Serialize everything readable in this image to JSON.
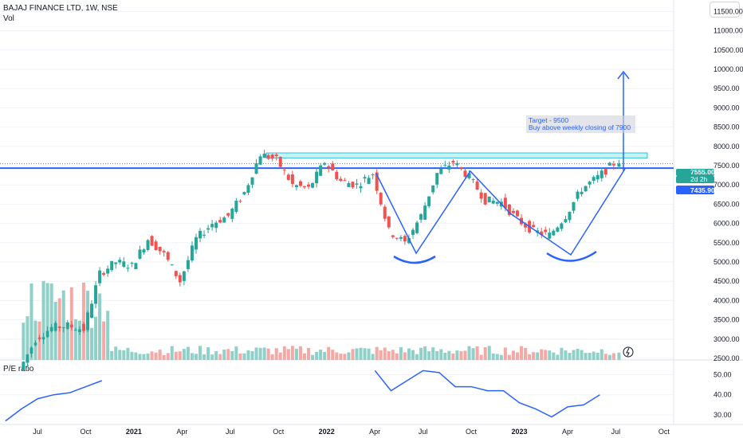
{
  "symbol_line": "BAJAJ FINANCE LTD, 1W, NSE",
  "volume_label": "Vol",
  "pe_label": "P/E ratio",
  "colors": {
    "up": "#26a69a",
    "down": "#ef5350",
    "up_vol": "#8fd0c8",
    "down_vol": "#f6a8a5",
    "pattern": "#2962ff",
    "pe_line": "#2962ff",
    "resistance_zone": "#b2ebf2"
  },
  "chart_data": [
    {
      "type": "candlestick",
      "title": "BAJAJ FINANCE LTD, 1W, NSE",
      "x_ticks": [
        "Jul",
        "Oct",
        "2021",
        "Apr",
        "Jul",
        "Oct",
        "2022",
        "Apr",
        "Jul",
        "Oct",
        "2023",
        "Apr",
        "Jul",
        "Oct"
      ],
      "y_ticks": [
        "2500.00",
        "3000.00",
        "3500.00",
        "4000.00",
        "4500.00",
        "5000.00",
        "5500.00",
        "6000.00",
        "6500.00",
        "7000.00",
        "7500.00",
        "8000.00",
        "8500.00",
        "9000.00",
        "9500.00",
        "10000.00",
        "10500.00",
        "11000.00",
        "11500.00"
      ],
      "ylim": [
        2500,
        11500
      ],
      "last_price_label": "7555.00",
      "countdown_label": "2d 2h",
      "line_price_label": "7435.90",
      "horizontal_line_value": 7435.9,
      "resistance_zone": [
        7700,
        7830
      ],
      "annotation": [
        "Target - 9500",
        "Buy above weekly closing of 7900"
      ],
      "target": 9500,
      "price_anchors": [
        {
          "date": "2020-06",
          "close": 2200
        },
        {
          "date": "2020-07",
          "close": 3000
        },
        {
          "date": "2020-08",
          "close": 3300
        },
        {
          "date": "2020-09",
          "close": 3350
        },
        {
          "date": "2020-10",
          "close": 3250
        },
        {
          "date": "2020-11",
          "close": 4700
        },
        {
          "date": "2020-12",
          "close": 5000
        },
        {
          "date": "2021-01",
          "close": 4900
        },
        {
          "date": "2021-02",
          "close": 5600
        },
        {
          "date": "2021-03",
          "close": 5200
        },
        {
          "date": "2021-04",
          "close": 4500
        },
        {
          "date": "2021-05",
          "close": 5600
        },
        {
          "date": "2021-06",
          "close": 6000
        },
        {
          "date": "2021-07",
          "close": 6200
        },
        {
          "date": "2021-08",
          "close": 6800
        },
        {
          "date": "2021-09",
          "close": 7800
        },
        {
          "date": "2021-10",
          "close": 7650
        },
        {
          "date": "2021-11",
          "close": 7000
        },
        {
          "date": "2021-12",
          "close": 6900
        },
        {
          "date": "2022-01",
          "close": 7600
        },
        {
          "date": "2022-02",
          "close": 7100
        },
        {
          "date": "2022-03",
          "close": 7000
        },
        {
          "date": "2022-04",
          "close": 7300
        },
        {
          "date": "2022-05",
          "close": 5800
        },
        {
          "date": "2022-06",
          "close": 5500
        },
        {
          "date": "2022-07",
          "close": 6200
        },
        {
          "date": "2022-08",
          "close": 7300
        },
        {
          "date": "2022-09",
          "close": 7600
        },
        {
          "date": "2022-10",
          "close": 7200
        },
        {
          "date": "2022-11",
          "close": 6600
        },
        {
          "date": "2022-12",
          "close": 6550
        },
        {
          "date": "2023-01",
          "close": 6100
        },
        {
          "date": "2023-02",
          "close": 5800
        },
        {
          "date": "2023-03",
          "close": 5700
        },
        {
          "date": "2023-04",
          "close": 6200
        },
        {
          "date": "2023-05",
          "close": 6900
        },
        {
          "date": "2023-06",
          "close": 7200
        },
        {
          "date": "2023-07",
          "close": 7555
        }
      ]
    },
    {
      "type": "line",
      "title": "P/E ratio",
      "y_ticks": [
        "30.00",
        "40.00",
        "50.00"
      ],
      "ylim": [
        26,
        54
      ],
      "series": [
        {
          "name": "P/E ratio",
          "x": [
            "2020-06",
            "2020-07",
            "2020-08",
            "2020-09",
            "2020-10",
            "2020-11",
            "2020-12",
            "2022-05",
            "2022-06",
            "2022-07",
            "2022-08",
            "2022-09",
            "2022-10",
            "2022-11",
            "2022-12",
            "2023-01",
            "2023-02",
            "2023-03",
            "2023-04",
            "2023-05",
            "2023-06",
            "2023-07"
          ],
          "values": [
            27,
            33,
            38,
            40,
            41,
            44,
            47,
            52,
            42,
            47,
            52,
            51,
            44,
            44,
            42,
            42,
            36,
            33,
            29,
            34,
            35,
            40
          ]
        }
      ]
    }
  ]
}
